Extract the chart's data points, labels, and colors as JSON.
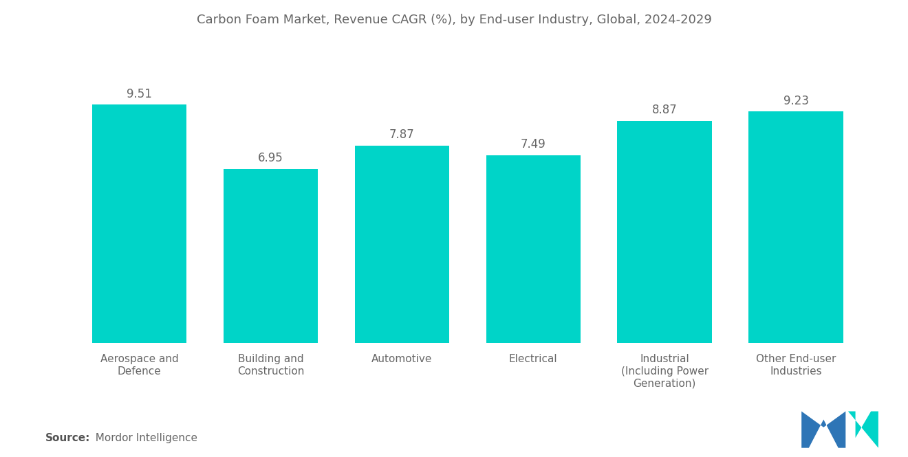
{
  "title": "Carbon Foam Market, Revenue CAGR (%), by End-user Industry, Global, 2024-2029",
  "categories": [
    "Aerospace and\nDefence",
    "Building and\nConstruction",
    "Automotive",
    "Electrical",
    "Industrial\n(Including Power\nGeneration)",
    "Other End-user\nIndustries"
  ],
  "values": [
    9.51,
    6.95,
    7.87,
    7.49,
    8.87,
    9.23
  ],
  "bar_color": "#00D4C8",
  "background_color": "#ffffff",
  "title_color": "#666666",
  "label_color": "#666666",
  "value_color": "#666666",
  "source_bold": "Source:",
  "source_text": "  Mordor Intelligence",
  "title_fontsize": 13.0,
  "value_fontsize": 12,
  "category_fontsize": 11,
  "source_fontsize": 11,
  "ylim": [
    0,
    11.5
  ],
  "bar_width": 0.72,
  "logo_left_color": "#2e75b6",
  "logo_right_color": "#00D4C8"
}
